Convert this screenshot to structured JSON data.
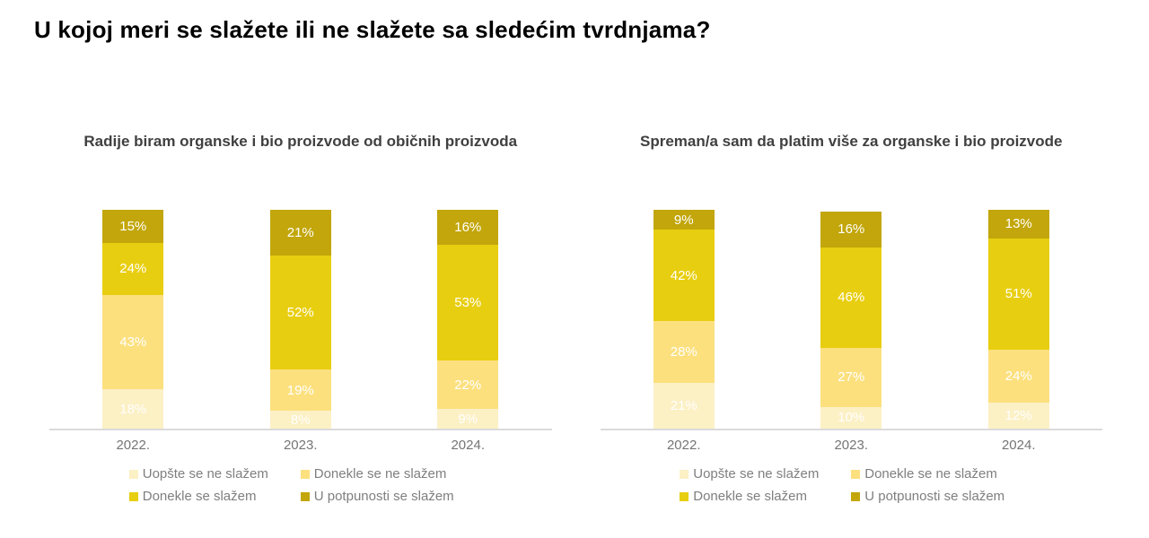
{
  "page": {
    "title": "U kojoj meri se slažete ili ne slažete sa sledećim tvrdnjama?"
  },
  "legend": {
    "items": [
      {
        "label": "Uopšte se ne slažem",
        "color": "#FCF0C5"
      },
      {
        "label": "Donekle se ne slažem",
        "color": "#FCE07E"
      },
      {
        "label": "Donekle se slažem",
        "color": "#E8CE10"
      },
      {
        "label": "U potpunosti se slažem",
        "color": "#C2A60B"
      }
    ]
  },
  "chart_data": [
    {
      "type": "bar",
      "stacked": true,
      "title": "Radije biram organske i bio proizvode od običnih proizvoda",
      "categories": [
        "2022.",
        "2023.",
        "2024."
      ],
      "series": [
        {
          "name": "Uopšte se ne slažem",
          "color": "#FCF0C5",
          "values": [
            18,
            8,
            9
          ]
        },
        {
          "name": "Donekle se ne slažem",
          "color": "#FCE07E",
          "values": [
            43,
            19,
            22
          ]
        },
        {
          "name": "Donekle se slažem",
          "color": "#E8CE10",
          "values": [
            24,
            52,
            53
          ]
        },
        {
          "name": "U potpunosti se slažem",
          "color": "#C2A60B",
          "values": [
            15,
            21,
            16
          ]
        }
      ],
      "value_suffix": "%",
      "ylim": [
        0,
        100
      ],
      "grid": false,
      "legend_position": "bottom"
    },
    {
      "type": "bar",
      "stacked": true,
      "title": "Spreman/a sam da platim više za organske i bio proizvode",
      "categories": [
        "2022.",
        "2023.",
        "2024."
      ],
      "series": [
        {
          "name": "Uopšte se ne slažem",
          "color": "#FCF0C5",
          "values": [
            21,
            10,
            12
          ]
        },
        {
          "name": "Donekle se ne slažem",
          "color": "#FCE07E",
          "values": [
            28,
            27,
            24
          ]
        },
        {
          "name": "Donekle se slažem",
          "color": "#E8CE10",
          "values": [
            42,
            46,
            51
          ]
        },
        {
          "name": "U potpunosti se slažem",
          "color": "#C2A60B",
          "values": [
            9,
            16,
            13
          ]
        }
      ],
      "value_suffix": "%",
      "ylim": [
        0,
        100
      ],
      "grid": false,
      "legend_position": "bottom"
    }
  ]
}
